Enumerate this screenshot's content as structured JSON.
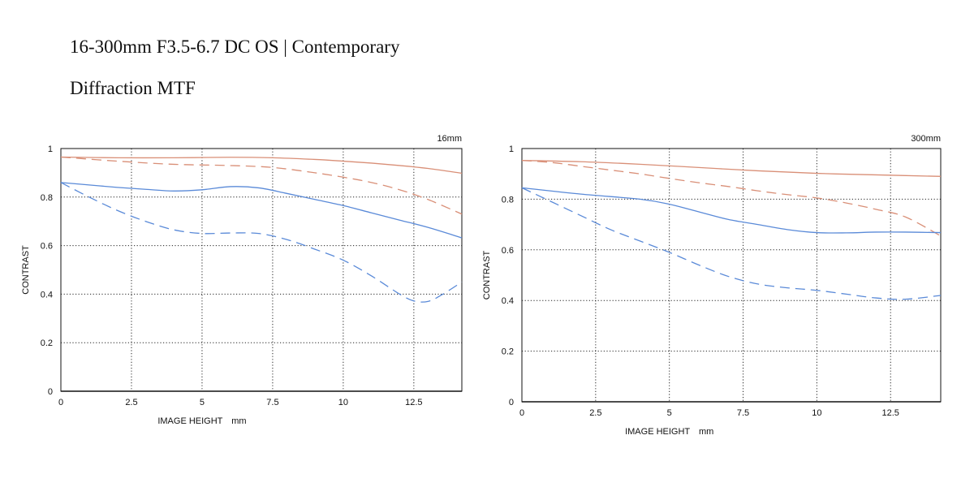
{
  "header": {
    "title": "16-300mm F3.5-6.7 DC OS | Contemporary",
    "subtitle": "Diffraction MTF"
  },
  "colors": {
    "orange": "#d98f77",
    "blue": "#5a8ad8",
    "grid": "#222222",
    "axis": "#111111"
  },
  "chart_data": [
    {
      "type": "line",
      "label": "16mm",
      "xlabel": "IMAGE HEIGHT　mm",
      "ylabel": "CONTRAST",
      "xlim": [
        0,
        14.2
      ],
      "ylim": [
        0,
        1
      ],
      "xticks": [
        0,
        2.5,
        5,
        7.5,
        10,
        12.5
      ],
      "xtick_labels": [
        "0",
        "2.5",
        "5",
        "7.5",
        "10",
        "12.5"
      ],
      "yticks": [
        0,
        0.2,
        0.4,
        0.6,
        0.8,
        1
      ],
      "ytick_labels": [
        "0",
        "0.2",
        "0.4",
        "0.6",
        "0.8",
        "1"
      ],
      "grid": true,
      "series": [
        {
          "color": "orange",
          "dash": "solid",
          "x": [
            0,
            2,
            4,
            6,
            7.5,
            9,
            10,
            11,
            12,
            13,
            14.2
          ],
          "y": [
            0.965,
            0.962,
            0.962,
            0.964,
            0.962,
            0.955,
            0.948,
            0.94,
            0.93,
            0.918,
            0.898
          ]
        },
        {
          "color": "orange",
          "dash": "dashed",
          "x": [
            0,
            2,
            4,
            6,
            7.5,
            9,
            10,
            11,
            12,
            13,
            14.2
          ],
          "y": [
            0.965,
            0.948,
            0.935,
            0.93,
            0.922,
            0.9,
            0.882,
            0.86,
            0.83,
            0.79,
            0.73
          ]
        },
        {
          "color": "blue",
          "dash": "solid",
          "x": [
            0,
            1,
            2,
            3,
            4,
            5,
            6,
            7,
            8,
            9,
            10,
            11,
            12,
            13,
            14.2
          ],
          "y": [
            0.86,
            0.85,
            0.84,
            0.832,
            0.825,
            0.83,
            0.843,
            0.838,
            0.815,
            0.79,
            0.765,
            0.735,
            0.705,
            0.675,
            0.632
          ]
        },
        {
          "color": "blue",
          "dash": "dashed",
          "x": [
            0,
            1,
            2,
            3,
            4,
            5,
            6,
            7,
            8,
            9,
            10,
            11,
            12,
            12.5,
            13,
            13.5,
            14.2
          ],
          "y": [
            0.86,
            0.8,
            0.745,
            0.7,
            0.665,
            0.65,
            0.652,
            0.65,
            0.625,
            0.585,
            0.54,
            0.475,
            0.4,
            0.372,
            0.37,
            0.398,
            0.45
          ]
        }
      ]
    },
    {
      "type": "line",
      "label": "300mm",
      "xlabel": "IMAGE HEIGHT　mm",
      "ylabel": "CONTRAST",
      "xlim": [
        0,
        14.2
      ],
      "ylim": [
        0,
        1
      ],
      "xticks": [
        0,
        2.5,
        5,
        7.5,
        10,
        12.5
      ],
      "xtick_labels": [
        "0",
        "2.5",
        "5",
        "7.5",
        "10",
        "12.5"
      ],
      "yticks": [
        0,
        0.2,
        0.4,
        0.6,
        0.8,
        1
      ],
      "ytick_labels": [
        "0",
        "0.2",
        "0.4",
        "0.6",
        "0.8",
        "1"
      ],
      "grid": true,
      "series": [
        {
          "color": "orange",
          "dash": "solid",
          "x": [
            0,
            2,
            4,
            6,
            8,
            10,
            12,
            14.2
          ],
          "y": [
            0.953,
            0.948,
            0.938,
            0.925,
            0.912,
            0.902,
            0.896,
            0.89
          ]
        },
        {
          "color": "orange",
          "dash": "dashed",
          "x": [
            0,
            1,
            2,
            3,
            4,
            5,
            6,
            7,
            8,
            9,
            10,
            11,
            12,
            13,
            14.2
          ],
          "y": [
            0.953,
            0.945,
            0.93,
            0.915,
            0.9,
            0.882,
            0.865,
            0.85,
            0.833,
            0.818,
            0.805,
            0.785,
            0.76,
            0.73,
            0.655
          ]
        },
        {
          "color": "blue",
          "dash": "solid",
          "x": [
            0,
            2,
            4,
            5,
            6,
            7,
            8,
            9,
            10,
            11,
            12,
            13,
            14.2
          ],
          "y": [
            0.845,
            0.82,
            0.8,
            0.78,
            0.75,
            0.72,
            0.7,
            0.68,
            0.668,
            0.667,
            0.67,
            0.67,
            0.668
          ]
        },
        {
          "color": "blue",
          "dash": "dashed",
          "x": [
            0,
            1,
            2,
            3,
            4,
            5,
            6,
            7,
            8,
            9,
            10,
            11,
            12,
            13,
            14.2
          ],
          "y": [
            0.845,
            0.79,
            0.735,
            0.68,
            0.635,
            0.59,
            0.54,
            0.495,
            0.465,
            0.45,
            0.44,
            0.425,
            0.41,
            0.405,
            0.42
          ]
        }
      ]
    }
  ]
}
